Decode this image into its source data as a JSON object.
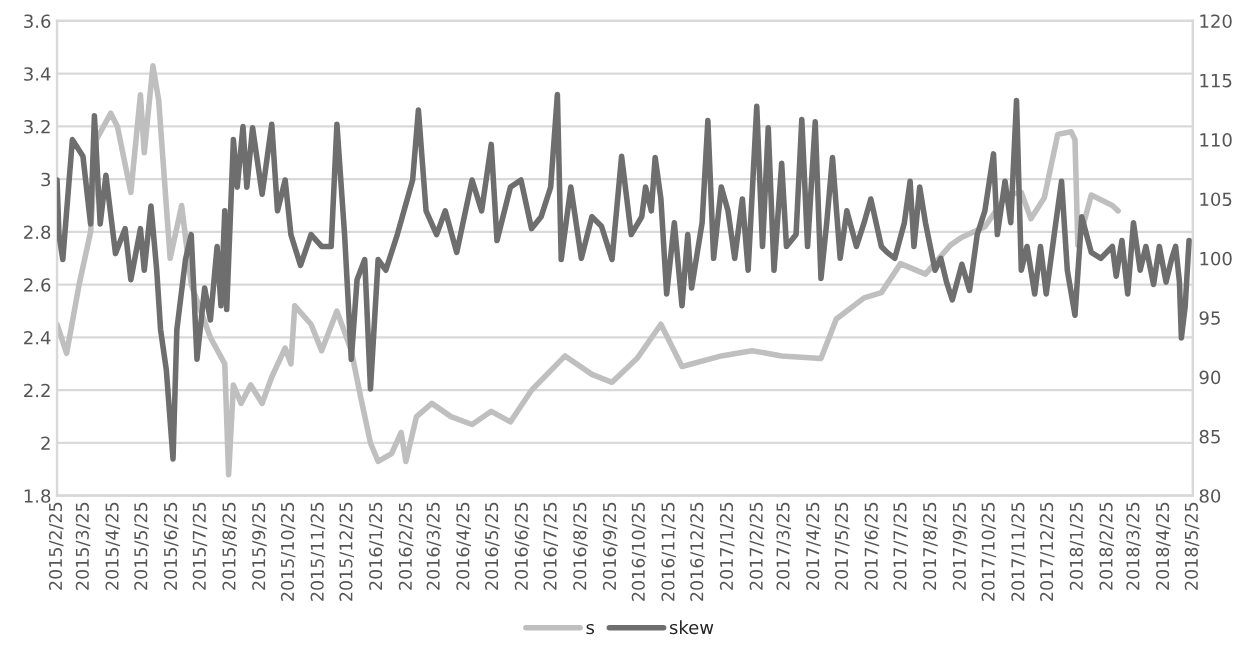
{
  "chart_data": {
    "type": "line",
    "xlim": [
      "2015-02-25",
      "2018-05-25"
    ],
    "xticks": [
      {
        "value": "2015-02-25",
        "label": "2015/2/25"
      },
      {
        "value": "2015-03-25",
        "label": "2015/3/25"
      },
      {
        "value": "2015-04-25",
        "label": "2015/4/25"
      },
      {
        "value": "2015-05-25",
        "label": "2015/5/25"
      },
      {
        "value": "2015-06-25",
        "label": "2015/6/25"
      },
      {
        "value": "2015-07-25",
        "label": "2015/7/25"
      },
      {
        "value": "2015-08-25",
        "label": "2015/8/25"
      },
      {
        "value": "2015-09-25",
        "label": "2015/9/25"
      },
      {
        "value": "2015-10-25",
        "label": "2015/10/25"
      },
      {
        "value": "2015-11-25",
        "label": "2015/11/25"
      },
      {
        "value": "2015-12-25",
        "label": "2015/12/25"
      },
      {
        "value": "2016-01-25",
        "label": "2016/1/25"
      },
      {
        "value": "2016-02-25",
        "label": "2016/2/25"
      },
      {
        "value": "2016-03-25",
        "label": "2016/3/25"
      },
      {
        "value": "2016-04-25",
        "label": "2016/4/25"
      },
      {
        "value": "2016-05-25",
        "label": "2016/5/25"
      },
      {
        "value": "2016-06-25",
        "label": "2016/6/25"
      },
      {
        "value": "2016-07-25",
        "label": "2016/7/25"
      },
      {
        "value": "2016-08-25",
        "label": "2016/8/25"
      },
      {
        "value": "2016-09-25",
        "label": "2016/9/25"
      },
      {
        "value": "2016-10-25",
        "label": "2016/10/25"
      },
      {
        "value": "2016-11-25",
        "label": "2016/11/25"
      },
      {
        "value": "2016-12-25",
        "label": "2016/12/25"
      },
      {
        "value": "2017-01-25",
        "label": "2017/1/25"
      },
      {
        "value": "2017-02-25",
        "label": "2017/2/25"
      },
      {
        "value": "2017-03-25",
        "label": "2017/3/25"
      },
      {
        "value": "2017-04-25",
        "label": "2017/4/25"
      },
      {
        "value": "2017-05-25",
        "label": "2017/5/25"
      },
      {
        "value": "2017-06-25",
        "label": "2017/6/25"
      },
      {
        "value": "2017-07-25",
        "label": "2017/7/25"
      },
      {
        "value": "2017-08-25",
        "label": "2017/8/25"
      },
      {
        "value": "2017-09-25",
        "label": "2017/9/25"
      },
      {
        "value": "2017-10-25",
        "label": "2017/10/25"
      },
      {
        "value": "2017-11-25",
        "label": "2017/11/25"
      },
      {
        "value": "2017-12-25",
        "label": "2017/12/25"
      },
      {
        "value": "2018-01-25",
        "label": "2018/1/25"
      },
      {
        "value": "2018-02-25",
        "label": "2018/2/25"
      },
      {
        "value": "2018-03-25",
        "label": "2018/3/25"
      },
      {
        "value": "2018-04-25",
        "label": "2018/4/25"
      },
      {
        "value": "2018-05-25",
        "label": "2018/5/25"
      }
    ],
    "ylim": [
      1.8,
      3.6
    ],
    "yticks": [
      1.8,
      2,
      2.2,
      2.4,
      2.6,
      2.8,
      3,
      3.2,
      3.4,
      3.6
    ],
    "y2lim": [
      80,
      120
    ],
    "y2ticks": [
      80,
      85,
      90,
      95,
      100,
      105,
      110,
      115,
      120
    ],
    "grid": "y",
    "legend": "bottom",
    "line_style": "solid",
    "series": [
      {
        "name": "s",
        "color": "#bfbfbf",
        "x": [
          "2015-02-25",
          "2015-03-07",
          "2015-03-20",
          "2015-04-01",
          "2015-04-07",
          "2015-04-22",
          "2015-04-29",
          "2015-05-13",
          "2015-05-23",
          "2015-05-27",
          "2015-06-05",
          "2015-06-11",
          "2015-06-17",
          "2015-06-23",
          "2015-07-05",
          "2015-07-15",
          "2015-08-04",
          "2015-08-19",
          "2015-08-23",
          "2015-08-28",
          "2015-09-05",
          "2015-09-15",
          "2015-09-27",
          "2015-10-07",
          "2015-10-21",
          "2015-10-27",
          "2015-10-31",
          "2015-11-17",
          "2015-11-28",
          "2015-12-14",
          "2015-12-29",
          "2016-01-08",
          "2016-01-18",
          "2016-01-26",
          "2016-02-09",
          "2016-02-19",
          "2016-02-24",
          "2016-03-06",
          "2016-03-22",
          "2016-04-11",
          "2016-05-03",
          "2016-05-23",
          "2016-06-12",
          "2016-07-04",
          "2016-08-08",
          "2016-09-05",
          "2016-09-26",
          "2016-10-22",
          "2016-11-16",
          "2016-12-08",
          "2017-01-18",
          "2017-02-19",
          "2017-03-22",
          "2017-05-02",
          "2017-05-18",
          "2017-06-16",
          "2017-07-04",
          "2017-07-24",
          "2017-08-19",
          "2017-09-14",
          "2017-09-26",
          "2017-10-20",
          "2017-11-12",
          "2017-11-27",
          "2017-12-07",
          "2017-12-21",
          "2018-01-04",
          "2018-01-18",
          "2018-01-22",
          "2018-01-25",
          "2018-02-08",
          "2018-03-02",
          "2018-03-08"
        ],
        "values": [
          2.45,
          2.34,
          2.6,
          2.8,
          3.15,
          3.25,
          3.2,
          2.95,
          3.32,
          3.1,
          3.43,
          3.3,
          3.0,
          2.7,
          2.9,
          2.6,
          2.4,
          2.3,
          1.88,
          2.22,
          2.15,
          2.22,
          2.15,
          2.25,
          2.36,
          2.3,
          2.52,
          2.45,
          2.35,
          2.5,
          2.35,
          2.17,
          2.0,
          1.93,
          1.96,
          2.04,
          1.93,
          2.1,
          2.15,
          2.1,
          2.07,
          2.12,
          2.08,
          2.2,
          2.33,
          2.26,
          2.23,
          2.32,
          2.45,
          2.29,
          2.33,
          2.35,
          2.33,
          2.32,
          2.47,
          2.55,
          2.57,
          2.68,
          2.64,
          2.75,
          2.78,
          2.82,
          2.94,
          2.95,
          2.85,
          2.93,
          3.17,
          3.18,
          3.15,
          2.75,
          2.94,
          2.9,
          2.88
        ]
      },
      {
        "name": "skew",
        "color": "#6e6e6e",
        "axis": "y2",
        "x": [
          "2015-02-25",
          "2015-02-27",
          "2015-03-03",
          "2015-03-13",
          "2015-03-24",
          "2015-04-01",
          "2015-04-05",
          "2015-04-11",
          "2015-04-17",
          "2015-04-27",
          "2015-05-07",
          "2015-05-13",
          "2015-05-23",
          "2015-05-27",
          "2015-06-03",
          "2015-06-09",
          "2015-06-13",
          "2015-06-19",
          "2015-06-26",
          "2015-06-30",
          "2015-07-09",
          "2015-07-15",
          "2015-07-21",
          "2015-07-29",
          "2015-08-04",
          "2015-08-11",
          "2015-08-15",
          "2015-08-19",
          "2015-08-21",
          "2015-08-28",
          "2015-09-01",
          "2015-09-07",
          "2015-09-11",
          "2015-09-17",
          "2015-09-27",
          "2015-10-07",
          "2015-10-13",
          "2015-10-21",
          "2015-10-27",
          "2015-11-06",
          "2015-11-17",
          "2015-11-28",
          "2015-12-08",
          "2015-12-14",
          "2015-12-22",
          "2015-12-29",
          "2016-01-04",
          "2016-01-12",
          "2016-01-18",
          "2016-01-26",
          "2016-02-03",
          "2016-02-15",
          "2016-03-02",
          "2016-03-08",
          "2016-03-16",
          "2016-03-27",
          "2016-04-05",
          "2016-04-17",
          "2016-05-03",
          "2016-05-13",
          "2016-05-23",
          "2016-05-29",
          "2016-06-12",
          "2016-06-23",
          "2016-07-04",
          "2016-07-14",
          "2016-07-24",
          "2016-07-31",
          "2016-08-04",
          "2016-08-14",
          "2016-08-25",
          "2016-09-05",
          "2016-09-15",
          "2016-09-26",
          "2016-10-06",
          "2016-10-16",
          "2016-10-27",
          "2016-10-31",
          "2016-11-06",
          "2016-11-10",
          "2016-11-16",
          "2016-11-22",
          "2016-11-30",
          "2016-12-08",
          "2016-12-14",
          "2016-12-18",
          "2016-12-29",
          "2017-01-04",
          "2017-01-10",
          "2017-01-18",
          "2017-01-25",
          "2017-02-01",
          "2017-02-09",
          "2017-02-15",
          "2017-02-24",
          "2017-03-02",
          "2017-03-08",
          "2017-03-14",
          "2017-03-22",
          "2017-03-27",
          "2017-04-06",
          "2017-04-12",
          "2017-04-18",
          "2017-04-26",
          "2017-05-02",
          "2017-05-08",
          "2017-05-14",
          "2017-05-22",
          "2017-05-29",
          "2017-06-08",
          "2017-06-16",
          "2017-06-23",
          "2017-07-04",
          "2017-07-10",
          "2017-07-18",
          "2017-07-28",
          "2017-08-03",
          "2017-08-07",
          "2017-08-13",
          "2017-08-19",
          "2017-08-29",
          "2017-09-04",
          "2017-09-10",
          "2017-09-16",
          "2017-09-26",
          "2017-10-04",
          "2017-10-12",
          "2017-10-20",
          "2017-10-29",
          "2017-11-02",
          "2017-11-10",
          "2017-11-16",
          "2017-11-22",
          "2017-11-27",
          "2017-12-03",
          "2017-12-11",
          "2017-12-17",
          "2017-12-23",
          "2018-01-02",
          "2018-01-08",
          "2018-01-14",
          "2018-01-22",
          "2018-01-29",
          "2018-02-08",
          "2018-02-18",
          "2018-03-02",
          "2018-03-06",
          "2018-03-12",
          "2018-03-18",
          "2018-03-24",
          "2018-03-31",
          "2018-04-06",
          "2018-04-14",
          "2018-04-20",
          "2018-04-27",
          "2018-05-03",
          "2018-05-07",
          "2018-05-11",
          "2018-05-13",
          "2018-05-17",
          "2018-05-21"
        ],
        "values": [
          106.6,
          102,
          99.9,
          110,
          108.6,
          102.9,
          112,
          102.9,
          107,
          100.4,
          102.5,
          98.2,
          102.5,
          99,
          104.4,
          99,
          94,
          90.6,
          83.1,
          94,
          99.9,
          102,
          91.5,
          97.5,
          94.8,
          101,
          96,
          104,
          95.7,
          110,
          106,
          111.1,
          106,
          111,
          105.4,
          111.3,
          104,
          106.6,
          102,
          99.4,
          102,
          101,
          101,
          111.3,
          102,
          91.5,
          98.2,
          99.9,
          89,
          99.9,
          99,
          102,
          106.6,
          112.5,
          104,
          102,
          104,
          100.5,
          106.6,
          104,
          109.6,
          101.5,
          106,
          106.6,
          102.5,
          103.5,
          106,
          113.8,
          99.9,
          106,
          100,
          103.5,
          102.7,
          99.9,
          108.6,
          102,
          103.5,
          106,
          104,
          108.5,
          105,
          97,
          103,
          96,
          102,
          97.5,
          103,
          111.6,
          100,
          106,
          104,
          100,
          105,
          99,
          112.8,
          101,
          111,
          99,
          108,
          101,
          102,
          111.7,
          101,
          111.5,
          98.3,
          103,
          108.5,
          100,
          104,
          101,
          103,
          105,
          101,
          100.5,
          100,
          103,
          106.5,
          101,
          106,
          103,
          99,
          100,
          98,
          96.5,
          99.5,
          97.3,
          102,
          104,
          108.8,
          102,
          106.5,
          103,
          113.3,
          99,
          101,
          97,
          101,
          97,
          103,
          106.5,
          99,
          95.2,
          103.5,
          100.5,
          100,
          101,
          98.5,
          101.5,
          97,
          103,
          99,
          101,
          97.8,
          101,
          98,
          100,
          101,
          98,
          93.3,
          96,
          101.5
        ]
      }
    ]
  }
}
